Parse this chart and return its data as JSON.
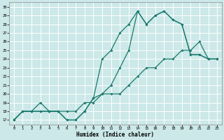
{
  "xlabel": "Humidex (Indice chaleur)",
  "bg_color": "#cce8e8",
  "grid_color": "#ffffff",
  "line_color": "#1a7a6e",
  "xlim": [
    -0.5,
    23.5
  ],
  "ylim": [
    16.5,
    30.5
  ],
  "xticks": [
    0,
    1,
    2,
    3,
    4,
    5,
    6,
    7,
    8,
    9,
    10,
    11,
    12,
    13,
    14,
    15,
    16,
    17,
    18,
    19,
    20,
    21,
    22,
    23
  ],
  "yticks": [
    17,
    18,
    19,
    20,
    21,
    22,
    23,
    24,
    25,
    26,
    27,
    28,
    29,
    30
  ],
  "line1_x": [
    0,
    1,
    2,
    3,
    4,
    5,
    6,
    7,
    8,
    9,
    10,
    11,
    12,
    13,
    14,
    15,
    16,
    17,
    18,
    19,
    20,
    21,
    22,
    23
  ],
  "line1_y": [
    17,
    18,
    18,
    18,
    18,
    18,
    17,
    17,
    18,
    19.5,
    24,
    25,
    27,
    28,
    29.5,
    28,
    29,
    29.5,
    28.5,
    28,
    24.5,
    24.5,
    24,
    24
  ],
  "line2_x": [
    0,
    1,
    2,
    3,
    4,
    5,
    6,
    7,
    8,
    9,
    10,
    11,
    12,
    13,
    14,
    15,
    16,
    17,
    18,
    19,
    20,
    21,
    22,
    23
  ],
  "line2_y": [
    17,
    18,
    18,
    18,
    18,
    18,
    17,
    17,
    18,
    19.5,
    20,
    21,
    23,
    25,
    29.5,
    28,
    29,
    29.5,
    28.5,
    28,
    24.5,
    24.5,
    24,
    24
  ],
  "line3_x": [
    0,
    1,
    2,
    3,
    4,
    5,
    6,
    7,
    8,
    9,
    10,
    11,
    12,
    13,
    14,
    15,
    16,
    17,
    18,
    19,
    20,
    21,
    22,
    23
  ],
  "line3_y": [
    17,
    18,
    18,
    19,
    18,
    18,
    18,
    18,
    19,
    19,
    20,
    20,
    20,
    21,
    22,
    23,
    23,
    24,
    24,
    25,
    25,
    26,
    24,
    24
  ]
}
